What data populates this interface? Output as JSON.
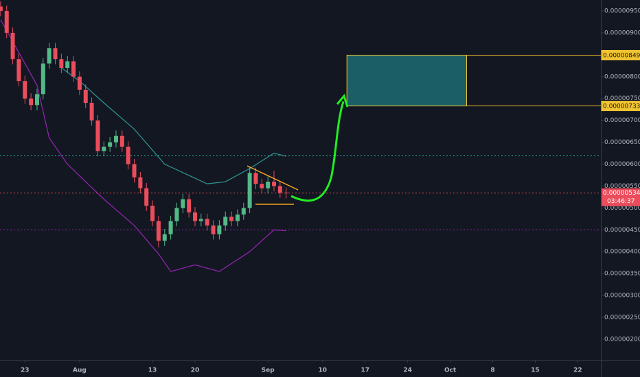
{
  "chart_data": {
    "type": "candlestick",
    "x": [
      -4,
      -3,
      -2,
      -1,
      0,
      1,
      2,
      3,
      4,
      5,
      6,
      7,
      8,
      9,
      10,
      11,
      12,
      13,
      14,
      15,
      16,
      17,
      18,
      19,
      20,
      21,
      22,
      23,
      24,
      25,
      26,
      27,
      28,
      29,
      30,
      31,
      32,
      33,
      34,
      35,
      36,
      37,
      38,
      39,
      40,
      41,
      42,
      43
    ],
    "open": [
      9.6e-06,
      9.5e-06,
      9e-06,
      8.4e-06,
      7.9e-06,
      7.5e-06,
      7.35e-06,
      7.6e-06,
      8.3e-06,
      8.65e-06,
      8.4e-06,
      8.2e-06,
      8.35e-06,
      8e-06,
      7.7e-06,
      7.4e-06,
      7e-06,
      6.3e-06,
      6.4e-06,
      6.5e-06,
      6.65e-06,
      6.4e-06,
      6e-06,
      5.7e-06,
      5.45e-06,
      5.05e-06,
      4.7e-06,
      4.25e-06,
      4.4e-06,
      4.7e-06,
      5e-06,
      5.2e-06,
      4.9e-06,
      4.7e-06,
      4.75e-06,
      4.6e-06,
      4.4e-06,
      4.6e-06,
      4.8e-06,
      4.7e-06,
      4.85e-06,
      5e-06,
      5.8e-06,
      5.55e-06,
      5.45e-06,
      5.6e-06,
      5.5e-06,
      5.35e-06
    ],
    "high": [
      9.72e-06,
      9.62e-06,
      9.12e-06,
      8.52e-06,
      8.02e-06,
      7.62e-06,
      7.72e-06,
      8.42e-06,
      8.77e-06,
      8.77e-06,
      8.52e-06,
      8.47e-06,
      8.47e-06,
      8.12e-06,
      7.82e-06,
      7.52e-06,
      7.12e-06,
      6.52e-06,
      6.62e-06,
      6.77e-06,
      6.77e-06,
      6.52e-06,
      6.12e-06,
      5.82e-06,
      5.57e-06,
      5.17e-06,
      4.82e-06,
      4.52e-06,
      4.82e-06,
      5.12e-06,
      5.32e-06,
      5.32e-06,
      5.02e-06,
      4.87e-06,
      4.87e-06,
      4.72e-06,
      4.72e-06,
      4.92e-06,
      4.92e-06,
      4.97e-06,
      5.12e-06,
      5.95e-06,
      5.92e-06,
      5.67e-06,
      5.72e-06,
      5.85e-06,
      5.62e-06,
      5.47e-06
    ],
    "low": [
      9.38e-06,
      8.88e-06,
      8.28e-06,
      7.78e-06,
      7.38e-06,
      7.23e-06,
      7.23e-06,
      7.48e-06,
      8.18e-06,
      8.28e-06,
      8.08e-06,
      8.08e-06,
      7.88e-06,
      7.58e-06,
      7.28e-06,
      6.88e-06,
      6.18e-06,
      6.18e-06,
      6.28e-06,
      6.38e-06,
      6.28e-06,
      5.88e-06,
      5.58e-06,
      5.33e-06,
      4.93e-06,
      4.58e-06,
      4.1e-06,
      4.13e-06,
      4.28e-06,
      4.58e-06,
      4.88e-06,
      4.78e-06,
      4.58e-06,
      4.58e-06,
      4.48e-06,
      4.28e-06,
      4.28e-06,
      4.48e-06,
      4.58e-06,
      4.58e-06,
      4.73e-06,
      4.88e-06,
      5.43e-06,
      5.33e-06,
      5.33e-06,
      5.38e-06,
      5.23e-06,
      5.22e-06
    ],
    "close": [
      9.5e-06,
      9e-06,
      8.4e-06,
      7.9e-06,
      7.5e-06,
      7.35e-06,
      7.6e-06,
      8.3e-06,
      8.65e-06,
      8.4e-06,
      8.2e-06,
      8.35e-06,
      8e-06,
      7.7e-06,
      7.4e-06,
      7e-06,
      6.3e-06,
      6.4e-06,
      6.5e-06,
      6.65e-06,
      6.4e-06,
      6e-06,
      5.7e-06,
      5.45e-06,
      5.05e-06,
      4.7e-06,
      4.25e-06,
      4.4e-06,
      4.7e-06,
      5e-06,
      5.2e-06,
      4.9e-06,
      4.7e-06,
      4.75e-06,
      4.6e-06,
      4.4e-06,
      4.6e-06,
      4.8e-06,
      4.7e-06,
      4.85e-06,
      5e-06,
      5.8e-06,
      5.55e-06,
      5.45e-06,
      5.6e-06,
      5.5e-06,
      5.35e-06,
      5.34e-06
    ],
    "up_color": "#53b987",
    "down_color": "#eb4d5c",
    "lines": [
      {
        "color": "#2e8f8f",
        "x": [
          6,
          9,
          13,
          18,
          23,
          30,
          33,
          37,
          41,
          43
        ],
        "values": [
          8.2e-06,
          7.9e-06,
          7.4e-06,
          6.8e-06,
          6e-06,
          5.55e-06,
          5.6e-06,
          5.9e-06,
          6.25e-06,
          6.18e-06
        ]
      },
      {
        "color": "#8e24aa",
        "x": [
          -4,
          -2,
          2,
          4,
          7,
          13,
          18,
          22,
          24,
          28,
          32,
          37,
          41,
          43
        ],
        "values": [
          9.3e-06,
          8.8e-06,
          7.8e-06,
          6.6e-06,
          6e-06,
          5.2e-06,
          4.6e-06,
          3.95e-06,
          3.55e-06,
          3.7e-06,
          3.55e-06,
          4e-06,
          4.5e-06,
          4.48e-06
        ]
      }
    ],
    "levels": [
      {
        "value": 6.2e-06,
        "color": "#26a69a"
      },
      {
        "value": 5.34e-06,
        "color": "#eb4d5c",
        "label": "0.00000534"
      },
      {
        "value": 4.5e-06,
        "color": "#9c27b0"
      }
    ],
    "countdown": "03:46:37",
    "target_box": {
      "x_start": 53,
      "x_end": 72.7,
      "color": "#1b5e66",
      "top": {
        "value": 8.49e-06,
        "label": "0.00000849"
      },
      "bottom": {
        "value": 7.33e-06,
        "label": "0.00000733"
      }
    },
    "xlim": [
      -4.1,
      94.8
    ],
    "xticks": [
      {
        "value": 0,
        "label": "23"
      },
      {
        "value": 9,
        "label": "Aug"
      },
      {
        "value": 21,
        "label": "13"
      },
      {
        "value": 28,
        "label": "20"
      },
      {
        "value": 40,
        "label": "Sep"
      },
      {
        "value": 49,
        "label": "10"
      },
      {
        "value": 56,
        "label": "17"
      },
      {
        "value": 63,
        "label": "24"
      },
      {
        "value": 70,
        "label": "Oct"
      },
      {
        "value": 77,
        "label": "8"
      },
      {
        "value": 84,
        "label": "15"
      },
      {
        "value": 91,
        "label": "22"
      }
    ],
    "ylim": [
      1.53e-06,
      9.75e-06
    ],
    "yticks": [
      {
        "value": 9.5e-06,
        "label": "0.00000950"
      },
      {
        "value": 9e-06,
        "label": "0.00000900"
      },
      {
        "value": 8.5e-06,
        "label": "0.00000850"
      },
      {
        "value": 8e-06,
        "label": "0.00000800"
      },
      {
        "value": 7.5e-06,
        "label": "0.00000750"
      },
      {
        "value": 7e-06,
        "label": "0.00000700"
      },
      {
        "value": 6.5e-06,
        "label": "0.00000650"
      },
      {
        "value": 6e-06,
        "label": "0.00000600"
      },
      {
        "value": 5.5e-06,
        "label": "0.00000550"
      },
      {
        "value": 5e-06,
        "label": "0.00000500"
      },
      {
        "value": 4.5e-06,
        "label": "0.00000450"
      },
      {
        "value": 4e-06,
        "label": "0.00000400"
      },
      {
        "value": 3.5e-06,
        "label": "0.00000350"
      },
      {
        "value": 3e-06,
        "label": "0.00000300"
      },
      {
        "value": 2.5e-06,
        "label": "0.00000250"
      },
      {
        "value": 2e-06,
        "label": "0.00000200"
      }
    ]
  }
}
